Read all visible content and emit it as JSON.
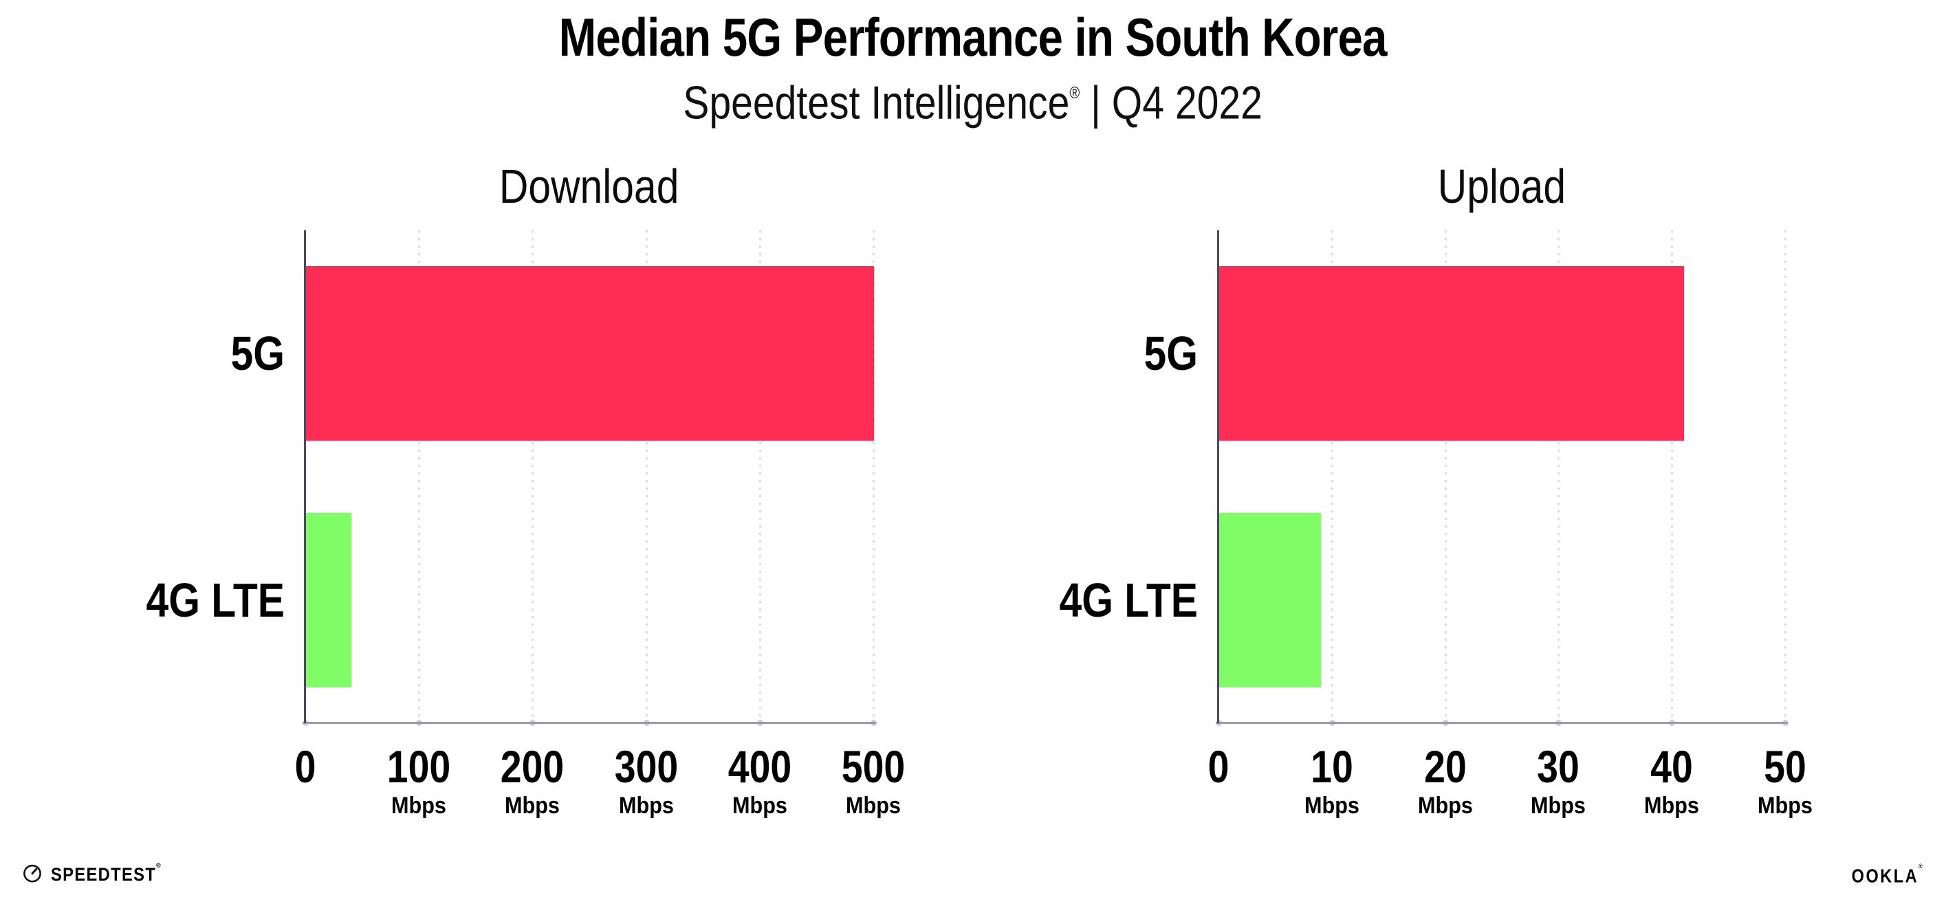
{
  "header": {
    "title": "Median 5G Performance in South Korea",
    "subtitle_brand": "Speedtest Intelligence",
    "subtitle_registered": "®",
    "subtitle_rest": " | Q4 2022"
  },
  "footer": {
    "speedtest_label": "SPEEDTEST",
    "speedtest_registered": "®",
    "speedtest_icon": "gauge-icon",
    "ookla_label": "OOKLA",
    "ookla_registered": "®"
  },
  "colors": {
    "bar_5g": "#FF2D55",
    "bar_4g_lte": "#80FC67",
    "axis_spine": "#4A4A58",
    "axis_baseline": "#9B9BA6",
    "gridline": "#DCDCE6",
    "grid_dot": "#CCCCDE",
    "text": "#000000"
  },
  "chart_data": [
    {
      "type": "bar",
      "orientation": "horizontal",
      "title": "Download",
      "categories": [
        "5G",
        "4G LTE"
      ],
      "values": [
        500,
        40
      ],
      "bar_colors": [
        "#FF2D55",
        "#80FC67"
      ],
      "unit": "Mbps",
      "xlim": [
        0,
        500
      ],
      "xticks": [
        0,
        100,
        200,
        300,
        400,
        500
      ],
      "tick_unit": "Mbps",
      "grid": "vertical-dotted",
      "legend": "none"
    },
    {
      "type": "bar",
      "orientation": "horizontal",
      "title": "Upload",
      "categories": [
        "5G",
        "4G LTE"
      ],
      "values": [
        41,
        9
      ],
      "bar_colors": [
        "#FF2D55",
        "#80FC67"
      ],
      "unit": "Mbps",
      "xlim": [
        0,
        50
      ],
      "xticks": [
        0,
        10,
        20,
        30,
        40,
        50
      ],
      "tick_unit": "Mbps",
      "grid": "vertical-dotted",
      "legend": "none"
    }
  ]
}
